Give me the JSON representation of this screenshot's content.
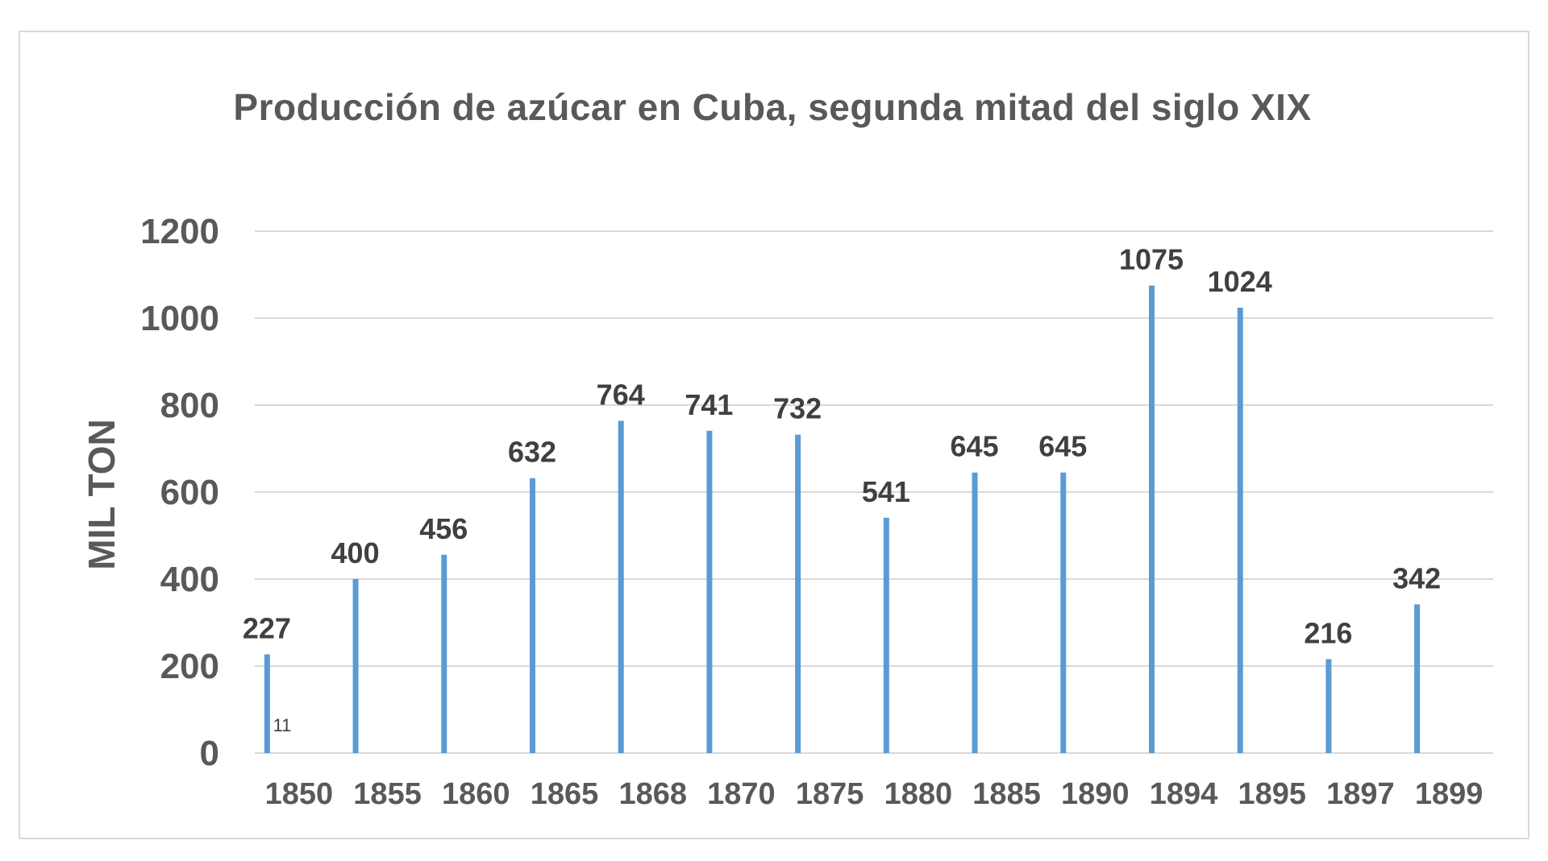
{
  "chart_data": {
    "type": "bar",
    "title": "Producción de azúcar en Cuba, segunda mitad del siglo XIX",
    "xlabel": "",
    "ylabel": "MIL TON",
    "ylim": [
      0,
      1200
    ],
    "yticks": [
      "0",
      "200",
      "400",
      "600",
      "800",
      "1000",
      "1200"
    ],
    "grid": "horizontal",
    "bar_color": "#5b9bd5",
    "gridline_color": "#d9d9d9",
    "categories": [
      "1850",
      "1855",
      "1860",
      "1865",
      "1868",
      "1870",
      "1875",
      "1880",
      "1885",
      "1890",
      "1894",
      "1895",
      "1897",
      "1899"
    ],
    "bar_labels": [
      "227",
      "400",
      "456",
      "632",
      "764",
      "741",
      "732",
      "541",
      "645",
      "645",
      "1075",
      "1024",
      "216",
      "342"
    ],
    "values": [
      227,
      400,
      456,
      632,
      764,
      741,
      732,
      541,
      645,
      645,
      1075,
      1024,
      216,
      342
    ],
    "annotation": "11"
  }
}
